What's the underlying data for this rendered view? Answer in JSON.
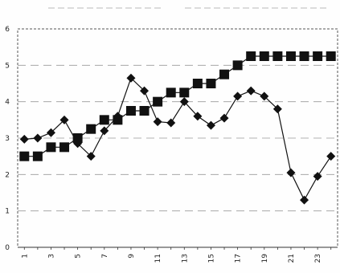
{
  "chart_data": {
    "type": "line",
    "x": [
      1,
      2,
      3,
      4,
      5,
      6,
      7,
      8,
      9,
      10,
      11,
      12,
      13,
      14,
      15,
      16,
      17,
      18,
      19,
      20,
      21,
      22,
      23,
      24
    ],
    "x_tick_labels": [
      "1",
      "3",
      "5",
      "7",
      "9",
      "11",
      "13",
      "15",
      "17",
      "19",
      "21",
      "23"
    ],
    "x_tick_values": [
      1,
      3,
      5,
      7,
      9,
      11,
      13,
      15,
      17,
      19,
      21,
      23
    ],
    "ylim": [
      0,
      6
    ],
    "y_tick_labels": [
      "0",
      "1",
      "2",
      "3",
      "4",
      "5",
      "6"
    ],
    "grid": true,
    "series": [
      {
        "marker": "diamond",
        "color": "#111111",
        "values": [
          2.97,
          3.0,
          3.15,
          3.5,
          2.85,
          2.5,
          3.2,
          3.6,
          4.65,
          4.3,
          3.45,
          3.42,
          4.0,
          3.6,
          3.35,
          3.55,
          4.15,
          4.3,
          4.15,
          3.8,
          2.05,
          1.3,
          1.95,
          2.5
        ]
      },
      {
        "marker": "square",
        "color": "#111111",
        "values": [
          2.5,
          2.5,
          2.75,
          2.75,
          3.0,
          3.25,
          3.5,
          3.5,
          3.75,
          3.75,
          4.0,
          4.25,
          4.25,
          4.5,
          4.5,
          4.75,
          5.0,
          5.25,
          5.25,
          5.25,
          5.25,
          5.25,
          5.25,
          5.25
        ]
      }
    ]
  }
}
